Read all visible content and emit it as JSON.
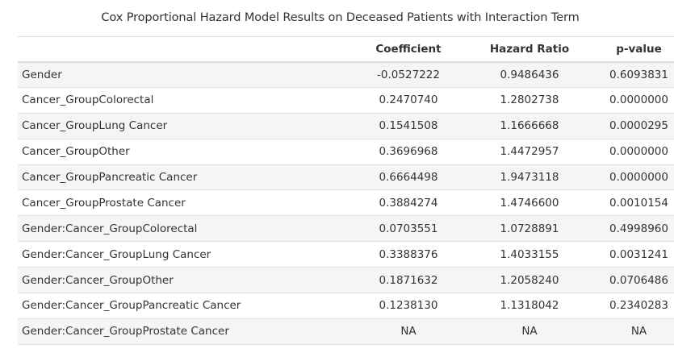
{
  "caption": "Cox Proportional Hazard Model Results on Deceased Patients with Interaction Term",
  "columns": {
    "term": "",
    "coefficient": "Coefficient",
    "hazard_ratio": "Hazard Ratio",
    "p_value": "p-value"
  },
  "rows": [
    {
      "term": "Gender",
      "coefficient": "-0.0527222",
      "hazard_ratio": "0.9486436",
      "p_value": "0.6093831"
    },
    {
      "term": "Cancer_GroupColorectal",
      "coefficient": "0.2470740",
      "hazard_ratio": "1.2802738",
      "p_value": "0.0000000"
    },
    {
      "term": "Cancer_GroupLung Cancer",
      "coefficient": "0.1541508",
      "hazard_ratio": "1.1666668",
      "p_value": "0.0000295"
    },
    {
      "term": "Cancer_GroupOther",
      "coefficient": "0.3696968",
      "hazard_ratio": "1.4472957",
      "p_value": "0.0000000"
    },
    {
      "term": "Cancer_GroupPancreatic Cancer",
      "coefficient": "0.6664498",
      "hazard_ratio": "1.9473118",
      "p_value": "0.0000000"
    },
    {
      "term": "Cancer_GroupProstate Cancer",
      "coefficient": "0.3884274",
      "hazard_ratio": "1.4746600",
      "p_value": "0.0010154"
    },
    {
      "term": "Gender:Cancer_GroupColorectal",
      "coefficient": "0.0703551",
      "hazard_ratio": "1.0728891",
      "p_value": "0.4998960"
    },
    {
      "term": "Gender:Cancer_GroupLung Cancer",
      "coefficient": "0.3388376",
      "hazard_ratio": "1.4033155",
      "p_value": "0.0031241"
    },
    {
      "term": "Gender:Cancer_GroupOther",
      "coefficient": "0.1871632",
      "hazard_ratio": "1.2058240",
      "p_value": "0.0706486"
    },
    {
      "term": "Gender:Cancer_GroupPancreatic Cancer",
      "coefficient": "0.1238130",
      "hazard_ratio": "1.1318042",
      "p_value": "0.2340283"
    },
    {
      "term": "Gender:Cancer_GroupProstate Cancer",
      "coefficient": "NA",
      "hazard_ratio": "NA",
      "p_value": "NA"
    }
  ]
}
